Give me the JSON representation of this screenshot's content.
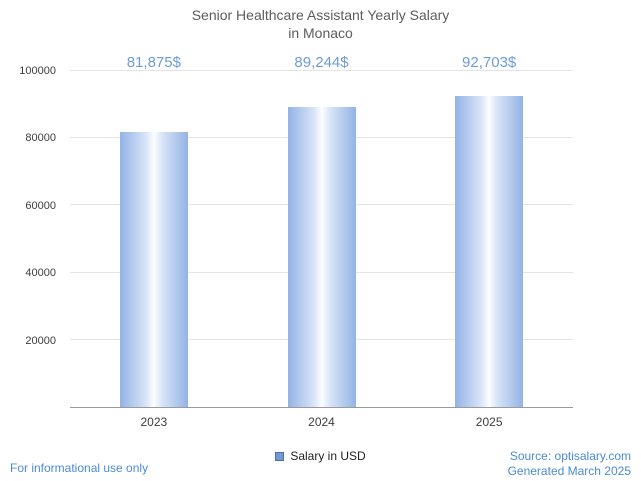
{
  "title": {
    "line1": "Senior Healthcare Assistant Yearly Salary",
    "line2": "in Monaco"
  },
  "chart_data": {
    "type": "bar",
    "title": "Senior Healthcare Assistant Yearly Salary in Monaco",
    "categories": [
      "2023",
      "2024",
      "2025"
    ],
    "values": [
      81875,
      89244,
      92703
    ],
    "value_labels": [
      "81,875$",
      "89,244$",
      "92,703$"
    ],
    "series_name": "Salary in USD",
    "xlabel": "",
    "ylabel": "",
    "ylim": [
      0,
      100000
    ],
    "yticks": [
      20000,
      40000,
      60000,
      80000,
      100000
    ],
    "grid": true,
    "legend_position": "bottom",
    "bar_color_edge": "#93b3e5",
    "bar_color_center": "#fdfeff",
    "value_label_color": "#6d9bd9"
  },
  "legend": {
    "label": "Salary in USD",
    "swatch_color": "#7099d6"
  },
  "footer": {
    "left": "For informational use only",
    "source": "Source: optisalary.com",
    "generated": "Generated March 2025"
  }
}
